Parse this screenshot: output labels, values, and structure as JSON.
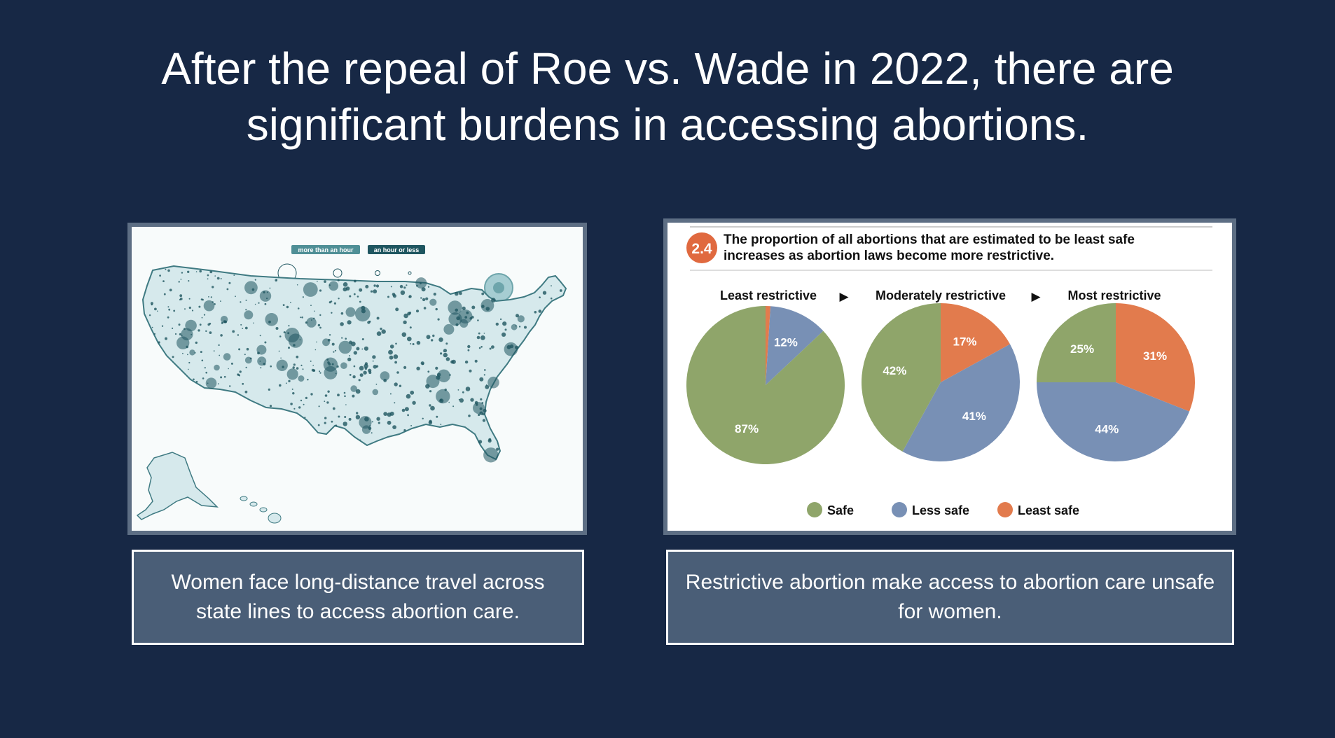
{
  "title": {
    "line1": "After the repeal of Roe vs. Wade in 2022, there are",
    "line2": "significant burdens in accessing abortions."
  },
  "map": {
    "legend": [
      "more than an hour",
      "an hour or less"
    ],
    "colors": {
      "land": "#d6e9ec",
      "dot": "#1f5660",
      "outline": "#3f7a82"
    }
  },
  "captions": {
    "left": "Women face long-distance travel across state lines to access abortion care.",
    "right": "Restrictive abortion make access to abortion care unsafe for women."
  },
  "chart_data": {
    "type": "pie",
    "badge": "2.4",
    "title": "The proportion of all abortions that are estimated to be least safe increases as abortion laws become more restrictive.",
    "arrow": "▶",
    "categories": [
      "Safe",
      "Less safe",
      "Least safe"
    ],
    "colors": [
      "#8fa56a",
      "#7890b5",
      "#e27b4d"
    ],
    "pies": [
      {
        "name": "Least restrictive",
        "values": [
          87,
          12,
          1
        ],
        "labels": [
          "87%",
          "12%",
          ""
        ]
      },
      {
        "name": "Moderately restrictive",
        "values": [
          42,
          41,
          17
        ],
        "labels": [
          "42%",
          "41%",
          "17%"
        ]
      },
      {
        "name": "Most restrictive",
        "values": [
          25,
          44,
          31
        ],
        "labels": [
          "25%",
          "44%",
          "31%"
        ]
      }
    ],
    "legend_placement": "bottom"
  }
}
